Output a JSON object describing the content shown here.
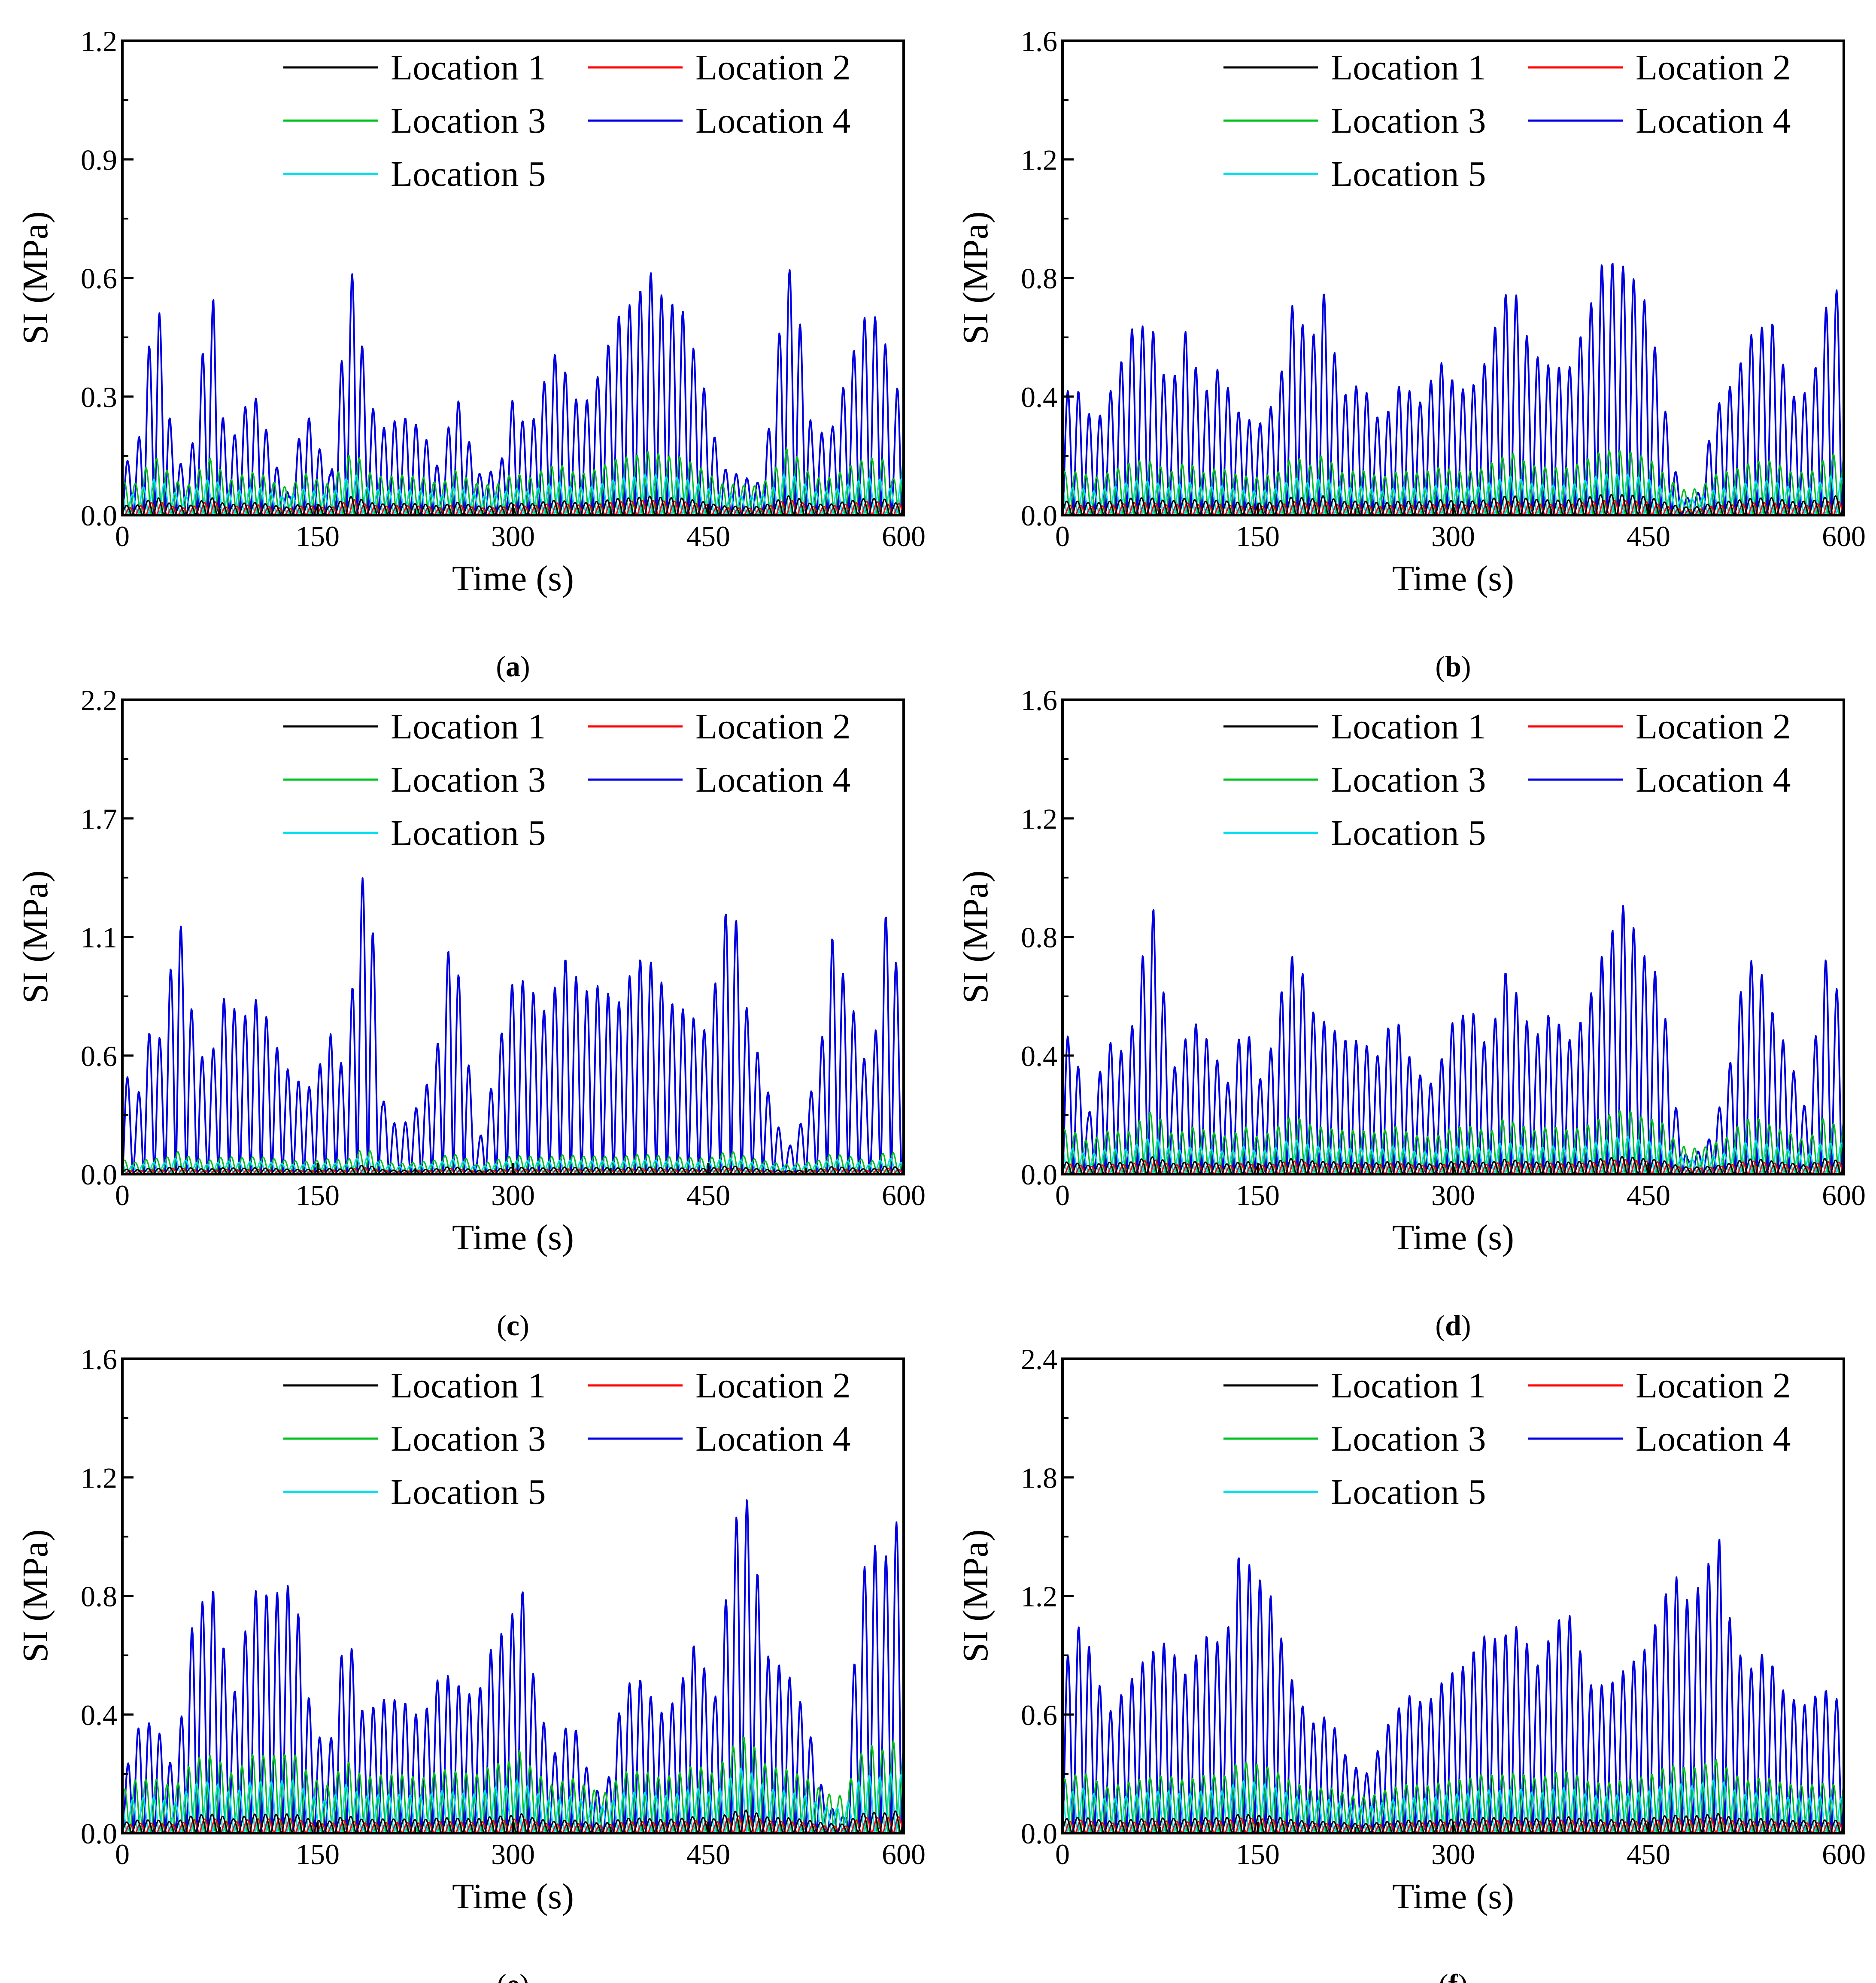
{
  "figure": {
    "panels": [
      {
        "letter": "a"
      },
      {
        "letter": "b"
      },
      {
        "letter": "c"
      },
      {
        "letter": "d"
      },
      {
        "letter": "e"
      },
      {
        "letter": "f"
      }
    ]
  },
  "chart_data": [
    {
      "panel": "a",
      "type": "line",
      "xlabel": "Time (s)",
      "ylabel": "SI (MPa)",
      "xlim": [
        0,
        600
      ],
      "ylim": [
        0,
        1.2
      ],
      "xticks": [
        "0",
        "150",
        "300",
        "450",
        "600"
      ],
      "yticks": [
        "0.0",
        "0.3",
        "0.6",
        "0.9",
        "1.2"
      ],
      "legend": {
        "position": "top-right",
        "columns": 2
      },
      "series": [
        {
          "name": "Location 1",
          "color": "#000000"
        },
        {
          "name": "Location 2",
          "color": "#ff0000"
        },
        {
          "name": "Location 3",
          "color": "#00c020"
        },
        {
          "name": "Location 4",
          "color": "#0000e0"
        },
        {
          "name": "Location 5",
          "color": "#00e0f0"
        }
      ],
      "location4_envelope": {
        "x": [
          0,
          10,
          20,
          28,
          38,
          50,
          62,
          70,
          80,
          95,
          105,
          115,
          128,
          140,
          150,
          160,
          170,
          178,
          188,
          200,
          215,
          230,
          245,
          255,
          265,
          275,
          290,
          300,
          312,
          325,
          335,
          345,
          355,
          365,
          380,
          395,
          405,
          415,
          430,
          445,
          460,
          475,
          490,
          500,
          510,
          520,
          530,
          545,
          560,
          572,
          585,
          592,
          600
        ],
        "y": [
          0.15,
          0.12,
          0.42,
          0.53,
          0.2,
          0.08,
          0.42,
          0.55,
          0.15,
          0.28,
          0.3,
          0.15,
          0.05,
          0.28,
          0.18,
          0.1,
          0.45,
          0.65,
          0.3,
          0.22,
          0.25,
          0.22,
          0.1,
          0.33,
          0.2,
          0.1,
          0.12,
          0.3,
          0.2,
          0.35,
          0.43,
          0.3,
          0.28,
          0.35,
          0.5,
          0.55,
          0.62,
          0.55,
          0.52,
          0.35,
          0.12,
          0.1,
          0.08,
          0.3,
          0.66,
          0.5,
          0.2,
          0.22,
          0.4,
          0.52,
          0.48,
          0.18,
          0.58
        ]
      },
      "location3_peak": 0.17,
      "location5_peak": 0.11,
      "location1_peak": 0.05,
      "location2_peak": 0.04
    },
    {
      "panel": "b",
      "type": "line",
      "xlabel": "Time (s)",
      "ylabel": "SI (MPa)",
      "xlim": [
        0,
        600
      ],
      "ylim": [
        0,
        1.6
      ],
      "xticks": [
        "0",
        "150",
        "300",
        "450",
        "600"
      ],
      "yticks": [
        "0.0",
        "0.4",
        "0.8",
        "1.2",
        "1.6"
      ],
      "legend": {
        "position": "top-right",
        "columns": 2
      },
      "series": [
        {
          "name": "Location 1",
          "color": "#000000"
        },
        {
          "name": "Location 2",
          "color": "#ff0000"
        },
        {
          "name": "Location 3",
          "color": "#00c020"
        },
        {
          "name": "Location 4",
          "color": "#0000e0"
        },
        {
          "name": "Location 5",
          "color": "#00e0f0"
        }
      ],
      "location4_envelope": {
        "x": [
          0,
          12,
          25,
          40,
          55,
          70,
          82,
          95,
          108,
          120,
          135,
          150,
          165,
          178,
          190,
          200,
          215,
          230,
          245,
          260,
          275,
          290,
          305,
          320,
          335,
          345,
          360,
          375,
          390,
          405,
          415,
          425,
          435,
          450,
          465,
          475,
          490,
          500,
          515,
          530,
          545,
          560,
          575,
          590,
          600
        ],
        "y": [
          0.42,
          0.42,
          0.3,
          0.45,
          0.65,
          0.62,
          0.4,
          0.63,
          0.4,
          0.5,
          0.35,
          0.3,
          0.4,
          0.75,
          0.55,
          0.77,
          0.4,
          0.45,
          0.3,
          0.45,
          0.38,
          0.52,
          0.42,
          0.45,
          0.68,
          0.8,
          0.55,
          0.5,
          0.5,
          0.7,
          0.86,
          0.85,
          0.83,
          0.7,
          0.3,
          0.05,
          0.08,
          0.35,
          0.45,
          0.62,
          0.65,
          0.4,
          0.42,
          0.79,
          0.72
        ]
      },
      "location3_peak": 0.22,
      "location5_peak": 0.14,
      "location1_peak": 0.07,
      "location2_peak": 0.05
    },
    {
      "panel": "c",
      "type": "line",
      "xlabel": "Time (s)",
      "ylabel": "SI (MPa)",
      "xlim": [
        0,
        600
      ],
      "ylim": [
        0,
        2.2
      ],
      "xticks": [
        "0",
        "150",
        "300",
        "450",
        "600"
      ],
      "yticks": [
        "0.0",
        "0.6",
        "1.1",
        "1.7",
        "2.2"
      ],
      "legend": {
        "position": "top-right",
        "columns": 2
      },
      "series": [
        {
          "name": "Location 1",
          "color": "#000000"
        },
        {
          "name": "Location 2",
          "color": "#ff0000"
        },
        {
          "name": "Location 3",
          "color": "#00c020"
        },
        {
          "name": "Location 4",
          "color": "#0000e0"
        },
        {
          "name": "Location 5",
          "color": "#00e0f0"
        }
      ],
      "location4_envelope": {
        "x": [
          0,
          10,
          22,
          32,
          42,
          52,
          65,
          80,
          90,
          105,
          118,
          130,
          145,
          160,
          172,
          182,
          190,
          200,
          212,
          225,
          240,
          252,
          262,
          272,
          285,
          298,
          310,
          325,
          340,
          355,
          368,
          380,
          395,
          408,
          420,
          435,
          450,
          462,
          470,
          480,
          495,
          510,
          522,
          535,
          545,
          560,
          575,
          585,
          592,
          600
        ],
        "y": [
          0.55,
          0.3,
          0.7,
          0.6,
          1.3,
          0.8,
          0.45,
          0.87,
          0.7,
          0.83,
          0.6,
          0.45,
          0.4,
          0.65,
          0.45,
          1.37,
          1.38,
          0.35,
          0.2,
          0.3,
          0.5,
          1.13,
          0.8,
          0.1,
          0.45,
          0.88,
          0.9,
          0.75,
          1.0,
          0.85,
          0.88,
          0.78,
          1.0,
          0.98,
          0.8,
          0.75,
          0.65,
          1.2,
          1.25,
          0.75,
          0.4,
          0.1,
          0.25,
          0.5,
          1.1,
          0.8,
          0.4,
          1.2,
          1.18,
          0.5
        ]
      },
      "location3_peak": 0.11,
      "location5_peak": 0.08,
      "location1_peak": 0.04,
      "location2_peak": 0.03
    },
    {
      "panel": "d",
      "type": "line",
      "xlabel": "Time (s)",
      "ylabel": "SI (MPa)",
      "xlim": [
        0,
        600
      ],
      "ylim": [
        0,
        1.6
      ],
      "xticks": [
        "0",
        "150",
        "300",
        "450",
        "600"
      ],
      "yticks": [
        "0.0",
        "0.4",
        "0.8",
        "1.2",
        "1.6"
      ],
      "legend": {
        "position": "top-right",
        "columns": 2
      },
      "series": [
        {
          "name": "Location 1",
          "color": "#000000"
        },
        {
          "name": "Location 2",
          "color": "#ff0000"
        },
        {
          "name": "Location 3",
          "color": "#00c020"
        },
        {
          "name": "Location 4",
          "color": "#0000e0"
        },
        {
          "name": "Location 5",
          "color": "#00e0f0"
        }
      ],
      "location4_envelope": {
        "x": [
          0,
          8,
          20,
          35,
          50,
          62,
          70,
          85,
          100,
          112,
          128,
          140,
          150,
          162,
          172,
          180,
          192,
          205,
          218,
          230,
          242,
          255,
          270,
          285,
          300,
          315,
          328,
          338,
          350,
          362,
          375,
          390,
          402,
          415,
          425,
          432,
          445,
          460,
          470,
          480,
          495,
          510,
          522,
          532,
          545,
          558,
          572,
          585,
          592,
          600
        ],
        "y": [
          0.48,
          0.45,
          0.2,
          0.45,
          0.4,
          0.75,
          0.9,
          0.35,
          0.52,
          0.45,
          0.3,
          0.55,
          0.3,
          0.45,
          0.72,
          0.75,
          0.55,
          0.5,
          0.45,
          0.45,
          0.4,
          0.55,
          0.35,
          0.3,
          0.52,
          0.55,
          0.4,
          0.7,
          0.6,
          0.45,
          0.55,
          0.45,
          0.55,
          0.75,
          0.85,
          0.92,
          0.75,
          0.65,
          0.25,
          0.05,
          0.1,
          0.3,
          0.65,
          0.75,
          0.55,
          0.4,
          0.2,
          0.75,
          0.6,
          0.68
        ]
      },
      "location3_peak": 0.22,
      "location5_peak": 0.13,
      "location1_peak": 0.06,
      "location2_peak": 0.05
    },
    {
      "panel": "e",
      "type": "line",
      "xlabel": "Time (s)",
      "ylabel": "SI (MPa)",
      "xlim": [
        0,
        600
      ],
      "ylim": [
        0,
        1.6
      ],
      "xticks": [
        "0",
        "150",
        "300",
        "450",
        "600"
      ],
      "yticks": [
        "0.0",
        "0.4",
        "0.8",
        "1.2",
        "1.6"
      ],
      "legend": {
        "position": "top-right",
        "columns": 2
      },
      "series": [
        {
          "name": "Location 1",
          "color": "#000000"
        },
        {
          "name": "Location 2",
          "color": "#ff0000"
        },
        {
          "name": "Location 3",
          "color": "#00c020"
        },
        {
          "name": "Location 4",
          "color": "#0000e0"
        },
        {
          "name": "Location 5",
          "color": "#00e0f0"
        }
      ],
      "location4_envelope": {
        "x": [
          0,
          10,
          25,
          40,
          55,
          70,
          85,
          100,
          115,
          132,
          145,
          158,
          172,
          185,
          200,
          215,
          230,
          245,
          258,
          272,
          285,
          298,
          305,
          315,
          330,
          345,
          358,
          370,
          385,
          400,
          412,
          425,
          440,
          455,
          465,
          475,
          482,
          495,
          510,
          525,
          540,
          555,
          565,
          575,
          585,
          592,
          600
        ],
        "y": [
          0.15,
          0.35,
          0.38,
          0.2,
          0.75,
          0.82,
          0.45,
          0.82,
          0.8,
          0.85,
          0.4,
          0.25,
          0.73,
          0.4,
          0.45,
          0.45,
          0.38,
          0.55,
          0.5,
          0.45,
          0.65,
          0.7,
          0.9,
          0.55,
          0.25,
          0.4,
          0.2,
          0.1,
          0.5,
          0.52,
          0.4,
          0.45,
          0.65,
          0.45,
          0.85,
          1.18,
          1.1,
          0.6,
          0.55,
          0.4,
          0.1,
          0.05,
          0.8,
          1.0,
          0.9,
          1.08,
          0.98
        ]
      },
      "location3_peak": 0.33,
      "location5_peak": 0.22,
      "location1_peak": 0.08,
      "location2_peak": 0.06
    },
    {
      "panel": "f",
      "type": "line",
      "xlabel": "Time (s)",
      "ylabel": "SI (MPa)",
      "xlim": [
        0,
        600
      ],
      "ylim": [
        0,
        2.4
      ],
      "xticks": [
        "0",
        "150",
        "300",
        "450",
        "600"
      ],
      "yticks": [
        "0.0",
        "0.6",
        "1.2",
        "1.8",
        "2.4"
      ],
      "legend": {
        "position": "top-right",
        "columns": 2
      },
      "series": [
        {
          "name": "Location 1",
          "color": "#000000"
        },
        {
          "name": "Location 2",
          "color": "#ff0000"
        },
        {
          "name": "Location 3",
          "color": "#00c020"
        },
        {
          "name": "Location 4",
          "color": "#0000e0"
        },
        {
          "name": "Location 5",
          "color": "#00e0f0"
        }
      ],
      "location4_envelope": {
        "x": [
          0,
          8,
          15,
          22,
          35,
          50,
          65,
          80,
          95,
          110,
          125,
          135,
          145,
          160,
          175,
          190,
          205,
          220,
          235,
          250,
          265,
          280,
          295,
          310,
          322,
          335,
          350,
          365,
          380,
          390,
          405,
          420,
          435,
          450,
          462,
          472,
          482,
          495,
          505,
          512,
          525,
          540,
          555,
          570,
          585,
          600
        ],
        "y": [
          0.85,
          0.95,
          1.1,
          0.9,
          0.6,
          0.75,
          0.9,
          0.97,
          0.8,
          1.0,
          0.95,
          1.4,
          1.35,
          1.2,
          0.8,
          0.55,
          0.6,
          0.35,
          0.3,
          0.55,
          0.7,
          0.65,
          0.8,
          0.85,
          1.0,
          0.98,
          1.05,
          0.85,
          1.08,
          1.1,
          0.75,
          0.75,
          0.85,
          0.95,
          1.2,
          1.3,
          1.15,
          1.35,
          1.5,
          1.1,
          0.8,
          0.93,
          0.7,
          0.65,
          0.73,
          0.65
        ]
      },
      "location3_peak": 0.38,
      "location5_peak": 0.28,
      "location1_peak": 0.1,
      "location2_peak": 0.08
    }
  ]
}
